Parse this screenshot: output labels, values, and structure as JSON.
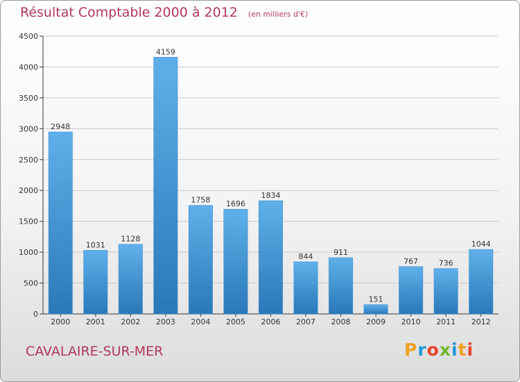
{
  "header": {
    "title": "Résultat Comptable 2000 à 2012",
    "unit_note": "(en milliers d'€)"
  },
  "footer": {
    "town": "CAVALAIRE-SUR-MER",
    "logo_letters": [
      "P",
      "r",
      "o",
      "x",
      "i",
      "t",
      "i"
    ],
    "logo_colors": [
      "#f0a022",
      "#1f9ad8",
      "#e8432c",
      "#73b62f",
      "#1f9ad8",
      "#f0a022",
      "#e8432c"
    ]
  },
  "colors": {
    "title": "#b1375a",
    "bar_top": "#5fb0ea",
    "bar_bottom": "#2a78b8",
    "grid": "#c8c8c8",
    "axis": "#333333"
  },
  "chart_data": {
    "type": "bar",
    "title": "Résultat Comptable 2000 à 2012",
    "xlabel": "",
    "ylabel": "",
    "ylim": [
      0,
      4500
    ],
    "yticks": [
      0,
      500,
      1000,
      1500,
      2000,
      2500,
      3000,
      3500,
      4000,
      4500
    ],
    "categories": [
      "2000",
      "2001",
      "2002",
      "2003",
      "2004",
      "2005",
      "2006",
      "2007",
      "2008",
      "2009",
      "2010",
      "2011",
      "2012"
    ],
    "values": [
      2948,
      1031,
      1128,
      4159,
      1758,
      1696,
      1834,
      844,
      911,
      151,
      767,
      736,
      1044
    ],
    "grid": true
  }
}
